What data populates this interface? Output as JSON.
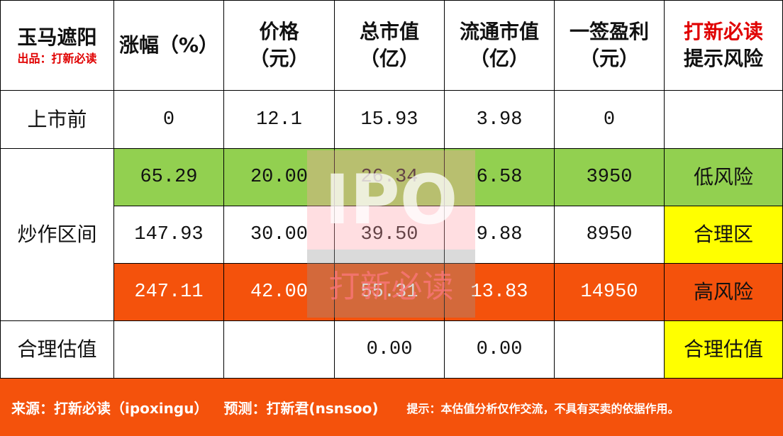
{
  "header": {
    "title": "玉马遮阳",
    "subtitle": "出品：打新必读",
    "columns": [
      [
        "涨幅（%）"
      ],
      [
        "价格",
        "（元）"
      ],
      [
        "总市值",
        "（亿）"
      ],
      [
        "流通市值",
        "（亿）"
      ],
      [
        "一签盈利",
        "（元）"
      ],
      [
        "打新必读",
        "提示风险"
      ]
    ],
    "accent_color": "#e00000"
  },
  "rows": [
    {
      "label": "上市前",
      "cells": [
        "0",
        "12.1",
        "15.93",
        "3.98",
        "0",
        null
      ]
    },
    {
      "group": "炒作区间",
      "items": [
        {
          "cells": [
            "65.29",
            "20.00",
            "26.34",
            "6.58",
            "3950",
            "低风险"
          ],
          "fill": "#92d050",
          "tag_fill": "#92d050"
        },
        {
          "cells": [
            "147.93",
            "30.00",
            "39.50",
            "9.88",
            "8950",
            "合理区"
          ],
          "fill": "#ffffff",
          "tag_fill": "#ffff00"
        },
        {
          "cells": [
            "247.11",
            "42.00",
            "55.31",
            "13.83",
            "14950",
            "高风险"
          ],
          "fill": "#f4520c",
          "tag_fill": "#f4520c",
          "text_color": "#ffffff"
        }
      ]
    },
    {
      "label": "合理估值",
      "cells": [
        null,
        null,
        "0.00",
        "0.00",
        null,
        "合理估值"
      ],
      "tag_fill": "#ffff00"
    }
  ],
  "footer": {
    "source": "来源：打新必读（ipoxingu）",
    "forecast": "预测：打新君(nsnsoo)",
    "note": "提示：本估值分析仅作交流，不具有买卖的依据作用。"
  },
  "watermark": {
    "top": "IPO",
    "bottom": "打新必读"
  }
}
